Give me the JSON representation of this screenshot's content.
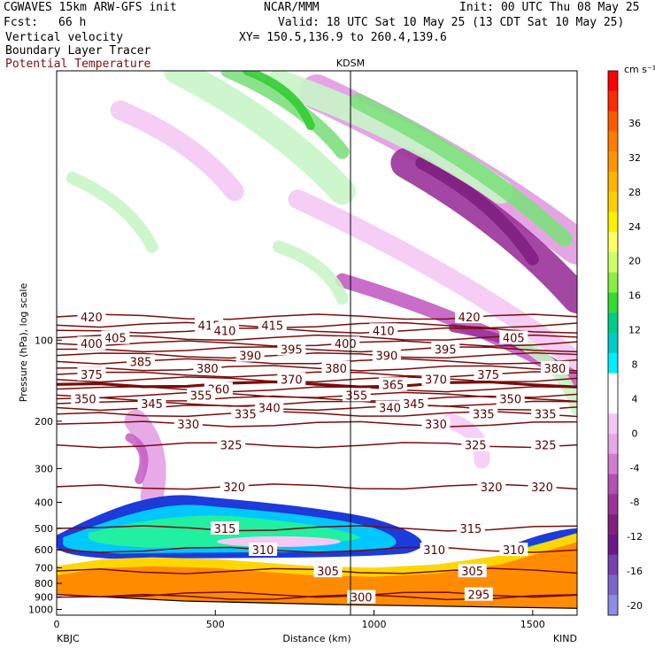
{
  "header": {
    "model": "CGWAVES 15km ARW-GFS init",
    "org": "NCAR/MMM",
    "init": "Init: 00 UTC Thu 08 May 25",
    "fcst_label": "Fcst:",
    "fcst_value": "66 h",
    "valid": "Valid: 18 UTC Sat 10 May 25 (13 CDT Sat 10 May 25)",
    "field1": "Vertical velocity",
    "xy": "XY= 150.5,136.9 to 260.4,139.6",
    "field2": "Boundary Layer Tracer",
    "field3": "Potential Temperature"
  },
  "station_mid": "KDSM",
  "station_left": "KBJC",
  "station_right": "KIND",
  "colors": {
    "theta": "#7a0c0c",
    "tracer_fill": "#ff8c00",
    "w_neg": [
      "#f4c8f4",
      "#e29be2",
      "#c45dc4",
      "#9a339a",
      "#7f1f7f"
    ],
    "w_pos": [
      "#c8f5c8",
      "#7de07d",
      "#33cc33"
    ]
  },
  "colorbar": {
    "unit": "cm s⁻¹",
    "labels": [
      "36",
      "32",
      "28",
      "24",
      "20",
      "16",
      "12",
      "8",
      "4",
      "0",
      "-4",
      "-8",
      "-12",
      "-16",
      "-20"
    ],
    "colors": [
      "#ff0000",
      "#ff2a00",
      "#ff5a00",
      "#ff7c00",
      "#ff9500",
      "#ffb400",
      "#ffd000",
      "#fff000",
      "#ffff66",
      "#ccff66",
      "#88ee44",
      "#33dd33",
      "#00cc88",
      "#00cccc",
      "#00eeff",
      "#ffffff",
      "#ffffff",
      "#f4c8f4",
      "#e8a8e8",
      "#d07cd0",
      "#b450b4",
      "#9a339a",
      "#802080",
      "#6a188a",
      "#7840b0",
      "#7a66cc",
      "#8c8ce8"
    ]
  },
  "chart_data": {
    "type": "cross-section",
    "title": "KDSM",
    "xlabel": "Distance (km)",
    "ylabel": "Pressure (hPa), log scale",
    "xlim": [
      0,
      1640
    ],
    "ylim": [
      1050,
      10
    ],
    "x_ticks": [
      "0",
      "500",
      "1000",
      "1500"
    ],
    "x_tick_values": [
      0,
      500,
      1000,
      1500
    ],
    "y_ticks": [
      "100",
      "200",
      "300",
      "400",
      "500",
      "600",
      "700",
      "800",
      "900",
      "1000"
    ],
    "y_tick_values": [
      100,
      200,
      300,
      400,
      500,
      600,
      700,
      800,
      900,
      1000
    ],
    "theta_contours": [
      {
        "label": "420",
        "p": 82,
        "labels_at": [
          110,
          1300
        ]
      },
      {
        "label": "415",
        "p": 88,
        "labels_at": [
          480,
          680
        ]
      },
      {
        "label": "410",
        "p": 92,
        "labels_at": [
          530,
          1030
        ]
      },
      {
        "label": "405",
        "p": 98,
        "labels_at": [
          185,
          1440
        ]
      },
      {
        "label": "400",
        "p": 103,
        "labels_at": [
          110,
          910
        ]
      },
      {
        "label": "395",
        "p": 108,
        "labels_at": [
          740,
          1225
        ]
      },
      {
        "label": "390",
        "p": 114,
        "labels_at": [
          610,
          1040
        ]
      },
      {
        "label": "385",
        "p": 120,
        "labels_at": [
          265
        ]
      },
      {
        "label": "380",
        "p": 127,
        "labels_at": [
          475,
          880,
          1570
        ]
      },
      {
        "label": "375",
        "p": 134,
        "labels_at": [
          110,
          1360
        ]
      },
      {
        "label": "370",
        "p": 140,
        "labels_at": [
          740,
          1195
        ]
      },
      {
        "label": "365",
        "p": 146,
        "labels_at": [
          1060
        ]
      },
      {
        "label": "360",
        "p": 152,
        "labels_at": [
          510
        ]
      },
      {
        "label": "355",
        "p": 160,
        "labels_at": [
          455,
          945
        ]
      },
      {
        "label": "350",
        "p": 165,
        "labels_at": [
          90,
          1430
        ]
      },
      {
        "label": "345",
        "p": 172,
        "labels_at": [
          300,
          1125
        ]
      },
      {
        "label": "340",
        "p": 178,
        "labels_at": [
          670,
          1050
        ]
      },
      {
        "label": "335",
        "p": 188,
        "labels_at": [
          595,
          1345,
          1540
        ]
      },
      {
        "label": "330",
        "p": 205,
        "labels_at": [
          415,
          1195
        ]
      },
      {
        "label": "325",
        "p": 245,
        "labels_at": [
          550,
          1320,
          1540
        ]
      },
      {
        "label": "320",
        "p": 350,
        "labels_at": [
          560,
          1370,
          1530
        ]
      },
      {
        "label": "315",
        "p": 500,
        "labels_at": [
          530,
          1305
        ]
      },
      {
        "label": "310",
        "p": 600,
        "labels_at": [
          650,
          1190,
          1440
        ]
      },
      {
        "label": "305",
        "p": 720,
        "labels_at": [
          855,
          1310
        ]
      },
      {
        "label": "300",
        "p": 900,
        "labels_at": [
          960
        ]
      },
      {
        "label": "295",
        "p": 880,
        "labels_at": [
          1330
        ]
      }
    ],
    "tracer_top_p": [
      [
        0,
        690
      ],
      [
        150,
        650
      ],
      [
        300,
        640
      ],
      [
        500,
        650
      ],
      [
        800,
        690
      ],
      [
        1000,
        700
      ],
      [
        1200,
        680
      ],
      [
        1400,
        630
      ],
      [
        1640,
        520
      ]
    ],
    "w_features": "upward-tilted alternating gravity-wave bands above 150 hPa; descending band along tropopause"
  }
}
